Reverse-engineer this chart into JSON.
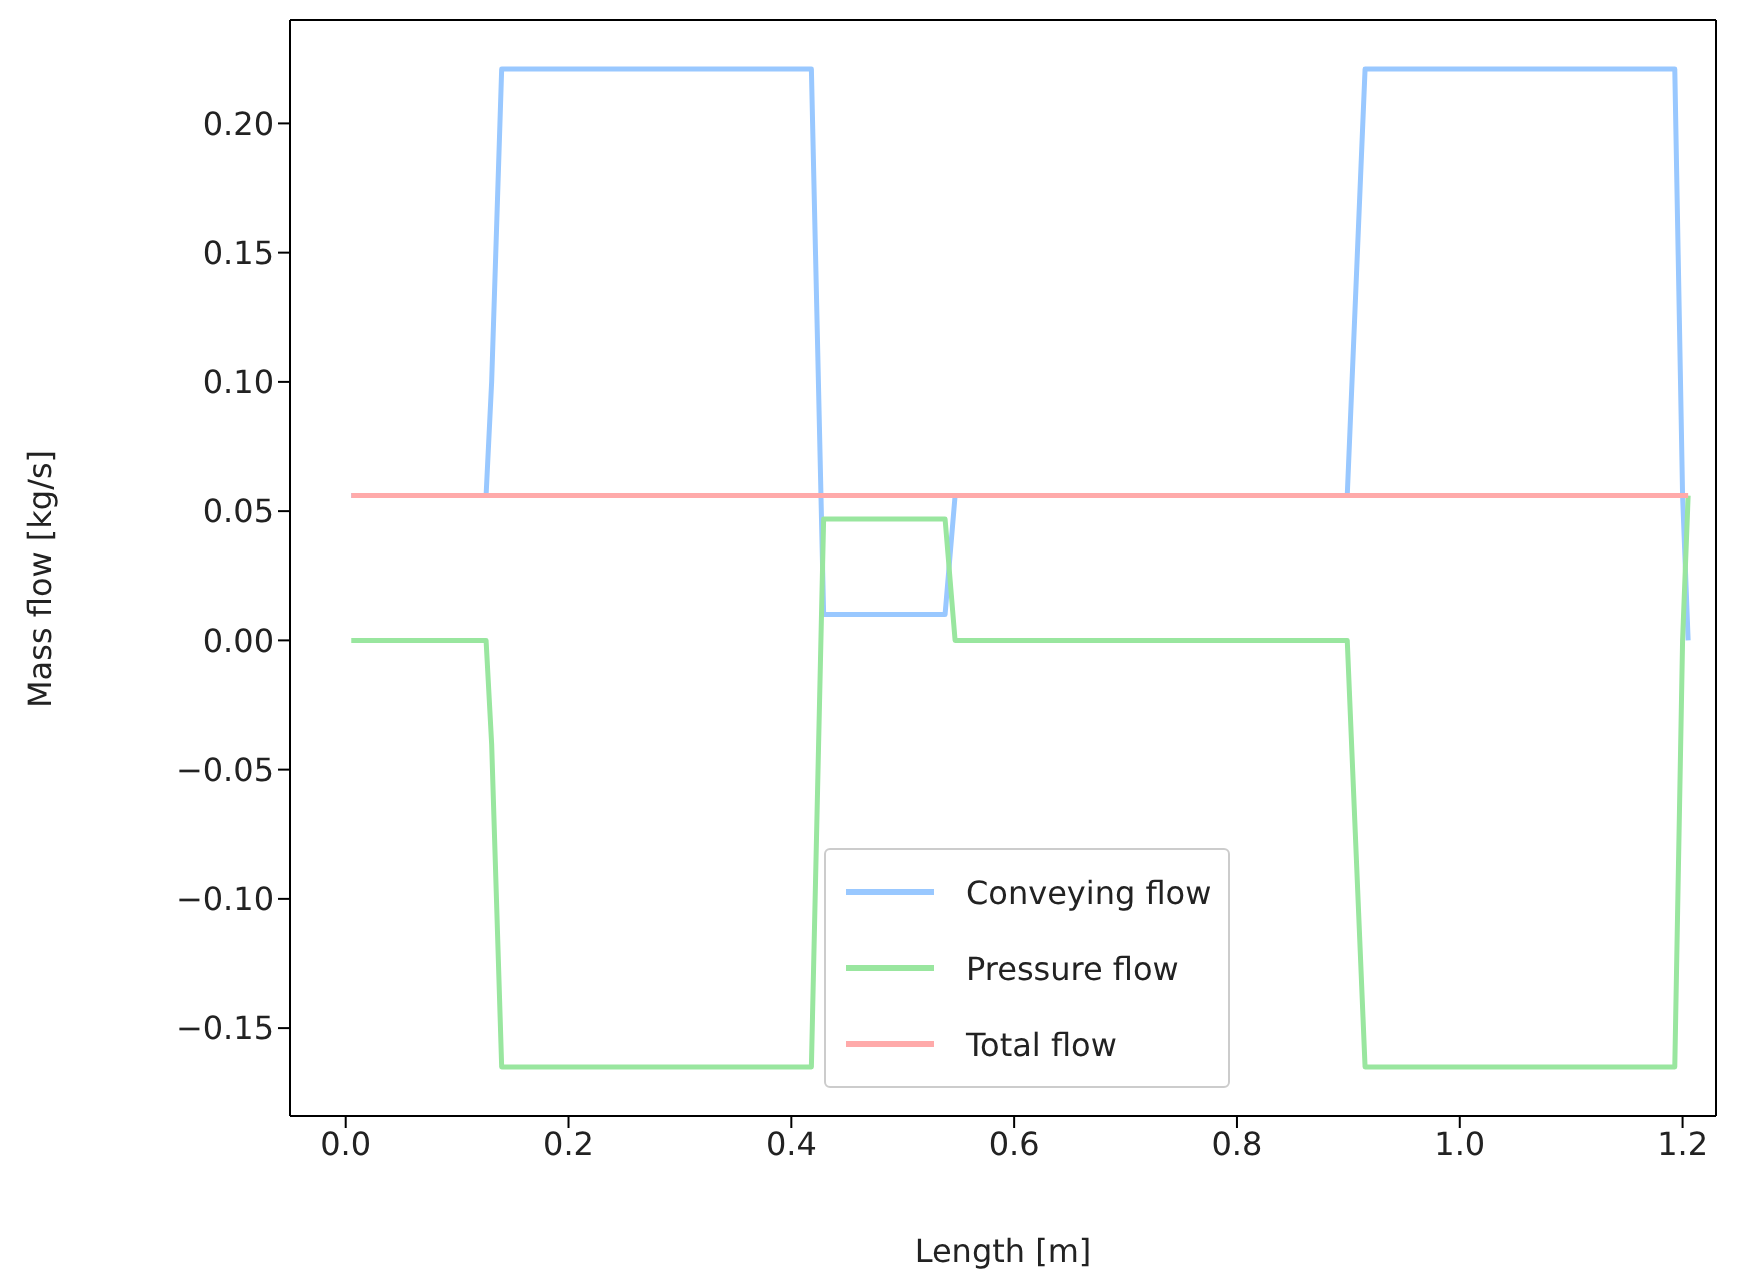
{
  "chart_data": {
    "type": "line",
    "xlabel": "Length [m]",
    "ylabel": "Mass flow [kg/s]",
    "xlim": [
      -0.05,
      1.23
    ],
    "xticks": [
      {
        "value": 0,
        "label": "0.0"
      },
      0.2,
      0.4,
      0.6,
      0.8,
      {
        "value": 1,
        "label": "1.0"
      },
      1.2
    ],
    "ylim": [
      -0.184,
      0.24
    ],
    "yticks": [
      {
        "value": -0.15,
        "label": "−0.15"
      },
      {
        "value": -0.1,
        "label": "−0.10"
      },
      {
        "value": -0.05,
        "label": "−0.05"
      },
      {
        "value": 0,
        "label": "0.00"
      },
      {
        "value": 0.05,
        "label": "0.05"
      },
      {
        "value": 0.1,
        "label": "0.10"
      },
      {
        "value": 0.15,
        "label": "0.15"
      },
      {
        "value": 0.2,
        "label": "0.20"
      }
    ],
    "legend": "bottom",
    "marker": "none",
    "line_style": "solid",
    "series": [
      {
        "name": "Conveying flow",
        "color": "#99c8ff",
        "x": [
          0.005,
          0.126,
          0.131,
          0.14,
          0.418,
          0.429,
          0.538,
          0.547,
          0.899,
          0.915,
          1.193,
          1.2,
          1.205
        ],
        "values": [
          0.056,
          0.056,
          0.1,
          0.221,
          0.221,
          0.01,
          0.01,
          0.056,
          0.056,
          0.221,
          0.221,
          0.056,
          0
        ]
      },
      {
        "name": "Pressure flow",
        "color": "#99e69f",
        "x": [
          0.005,
          0.126,
          0.131,
          0.14,
          0.418,
          0.429,
          0.538,
          0.547,
          0.899,
          0.915,
          1.193,
          1.2,
          1.205
        ],
        "values": [
          0,
          0,
          -0.04,
          -0.165,
          -0.165,
          0.047,
          0.047,
          0,
          0,
          -0.165,
          -0.165,
          0,
          0.056
        ]
      },
      {
        "name": "Total flow",
        "color": "#ffaaaa",
        "x": [
          0.005,
          1.205
        ],
        "values": [
          0.056,
          0.056
        ]
      }
    ]
  }
}
